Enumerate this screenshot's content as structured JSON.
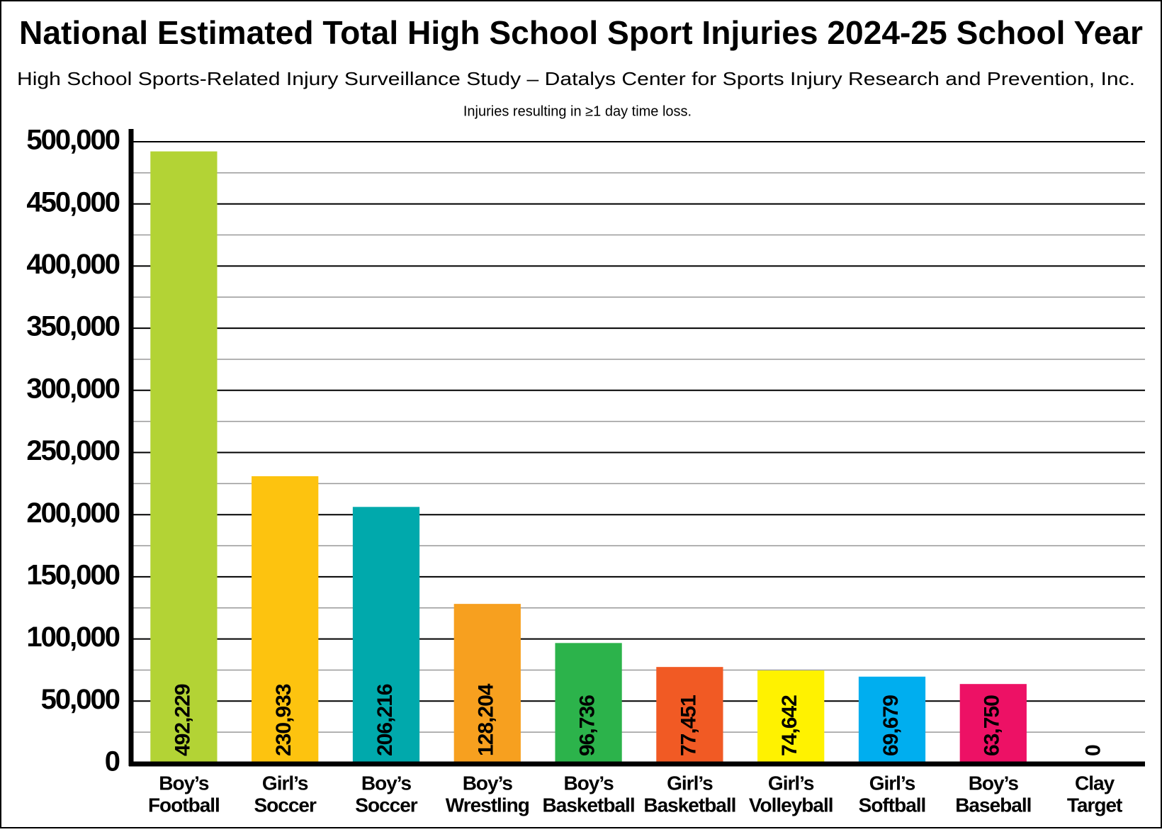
{
  "chart_data": {
    "type": "bar",
    "title": "National Estimated Total High School Sport Injuries 2024-25 School Year",
    "subtitle": "High School Sports-Related Injury Surveillance Study – Datalys Center for Sports Injury Research and Prevention, Inc.",
    "note": "Injuries resulting in ≥1 day time loss.",
    "categories": [
      [
        "Boy’s",
        "Football"
      ],
      [
        "Girl’s",
        "Soccer"
      ],
      [
        "Boy’s",
        "Soccer"
      ],
      [
        "Boy’s",
        "Wrestling"
      ],
      [
        "Boy’s",
        "Basketball"
      ],
      [
        "Girl’s",
        "Basketball"
      ],
      [
        "Girl’s",
        "Volleyball"
      ],
      [
        "Girl’s",
        "Softball"
      ],
      [
        "Boy’s",
        "Baseball"
      ],
      [
        "Clay",
        "Target"
      ]
    ],
    "values": [
      492229,
      230933,
      206216,
      128204,
      96736,
      77451,
      74642,
      69679,
      63750,
      0
    ],
    "value_labels": [
      "492,229",
      "230,933",
      "206,216",
      "128,204",
      "96,736",
      "77,451",
      "74,642",
      "69,679",
      "63,750",
      "0"
    ],
    "colors": [
      "#b3d335",
      "#fdc30f",
      "#00a9ac",
      "#f7a01f",
      "#2cb34b",
      "#f15a24",
      "#fff200",
      "#00aeef",
      "#ed1165",
      "#888888"
    ],
    "ylim": [
      0,
      500000
    ],
    "yticks": [
      0,
      {
        "value": 50000,
        "label": "50,000"
      },
      {
        "value": 100000,
        "label": "100,000"
      },
      {
        "value": 150000,
        "label": "150,000"
      },
      {
        "value": 200000,
        "label": "200,000"
      },
      {
        "value": 250000,
        "label": "250,000"
      },
      {
        "value": 300000,
        "label": "300,000"
      },
      {
        "value": 350000,
        "label": "350,000"
      },
      {
        "value": 400000,
        "label": "400,000"
      },
      {
        "value": 450000,
        "label": "450,000"
      },
      {
        "value": 500000,
        "label": "500,000"
      }
    ],
    "minor_yticks": [
      25000,
      75000,
      125000,
      175000,
      225000,
      275000,
      325000,
      375000,
      425000,
      475000
    ],
    "grid": true
  }
}
